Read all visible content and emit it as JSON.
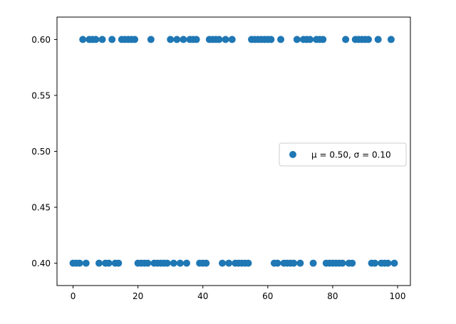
{
  "chart_data": {
    "type": "scatter",
    "title": "",
    "xlabel": "",
    "ylabel": "",
    "xlim": [
      -4.95,
      103.95
    ],
    "ylim": [
      0.38,
      0.62
    ],
    "x_ticks": [
      "0",
      "20",
      "40",
      "60",
      "80",
      "100"
    ],
    "y_ticks": [
      "0.40",
      "0.45",
      "0.50",
      "0.55",
      "0.60"
    ],
    "grid": false,
    "legend": {
      "position": "center-right"
    },
    "marker_color": "#1f77b4",
    "series": [
      {
        "name": "μ = 0.50,  σ = 0.10",
        "x": [
          0,
          1,
          2,
          3,
          4,
          5,
          6,
          7,
          8,
          9,
          10,
          11,
          12,
          13,
          14,
          15,
          16,
          17,
          18,
          19,
          20,
          21,
          22,
          23,
          24,
          25,
          26,
          27,
          28,
          29,
          30,
          31,
          32,
          33,
          34,
          35,
          36,
          37,
          38,
          39,
          40,
          41,
          42,
          43,
          44,
          45,
          46,
          47,
          48,
          49,
          50,
          51,
          52,
          53,
          54,
          55,
          56,
          57,
          58,
          59,
          60,
          61,
          62,
          63,
          64,
          65,
          66,
          67,
          68,
          69,
          70,
          71,
          72,
          73,
          74,
          75,
          76,
          77,
          78,
          79,
          80,
          81,
          82,
          83,
          84,
          85,
          86,
          87,
          88,
          89,
          90,
          91,
          92,
          93,
          94,
          95,
          96,
          97,
          98,
          99
        ],
        "y": [
          0.4,
          0.4,
          0.4,
          0.6,
          0.4,
          0.6,
          0.6,
          0.6,
          0.4,
          0.6,
          0.4,
          0.4,
          0.6,
          0.4,
          0.4,
          0.6,
          0.6,
          0.6,
          0.6,
          0.6,
          0.4,
          0.4,
          0.4,
          0.4,
          0.6,
          0.4,
          0.4,
          0.4,
          0.4,
          0.4,
          0.6,
          0.4,
          0.6,
          0.4,
          0.6,
          0.4,
          0.6,
          0.6,
          0.6,
          0.4,
          0.4,
          0.4,
          0.6,
          0.6,
          0.6,
          0.6,
          0.4,
          0.6,
          0.4,
          0.6,
          0.4,
          0.4,
          0.4,
          0.4,
          0.4,
          0.6,
          0.6,
          0.6,
          0.6,
          0.6,
          0.6,
          0.6,
          0.4,
          0.4,
          0.6,
          0.4,
          0.4,
          0.4,
          0.4,
          0.6,
          0.4,
          0.6,
          0.6,
          0.6,
          0.4,
          0.6,
          0.6,
          0.6,
          0.4,
          0.4,
          0.4,
          0.4,
          0.4,
          0.4,
          0.6,
          0.4,
          0.4,
          0.6,
          0.6,
          0.6,
          0.6,
          0.6,
          0.4,
          0.4,
          0.6,
          0.4,
          0.4,
          0.4,
          0.6,
          0.4
        ]
      }
    ]
  }
}
